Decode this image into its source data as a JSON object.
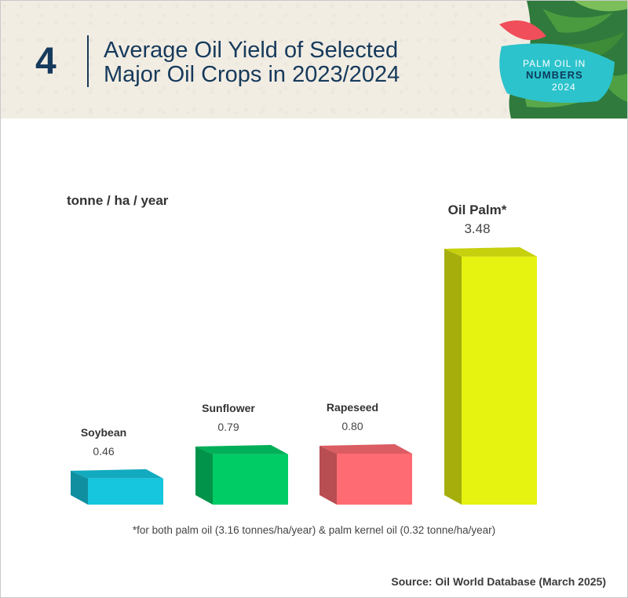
{
  "header": {
    "figure_number": "4",
    "title": "Average Oil Yield of Selected\nMajor Oil Crops in 2023/2024",
    "badge_line1": "PALM OIL IN",
    "badge_line2": "NUMBERS",
    "badge_line3": "2024"
  },
  "chart_data": {
    "type": "bar",
    "title": "Average Oil Yield of Selected Major Oil Crops in 2023/2024",
    "unit_label": "tonne / ha / year",
    "categories": [
      "Soybean",
      "Sunflower",
      "Rapeseed",
      "Oil Palm*"
    ],
    "values": [
      0.46,
      0.79,
      0.8,
      3.48
    ],
    "value_labels": [
      "0.46",
      "0.79",
      "0.80",
      "3.48"
    ],
    "colors": [
      "#15c6de",
      "#00cc66",
      "#ff6b72",
      "#e6f20f"
    ],
    "ylim": [
      0,
      3.48
    ],
    "grid": false,
    "legend": "none"
  },
  "footnote": "*for both palm oil (3.16 tonnes/ha/year) & palm kernel oil (0.32 tonne/ha/year)",
  "source": "Source: Oil World Database (March 2025)",
  "colors": {
    "title": "#163a5c",
    "header_bg": "#f2ede3",
    "badge_teal": "#2cc3cc",
    "badge_red": "#f04e5a",
    "leaf_green": "#2f7a3c"
  }
}
